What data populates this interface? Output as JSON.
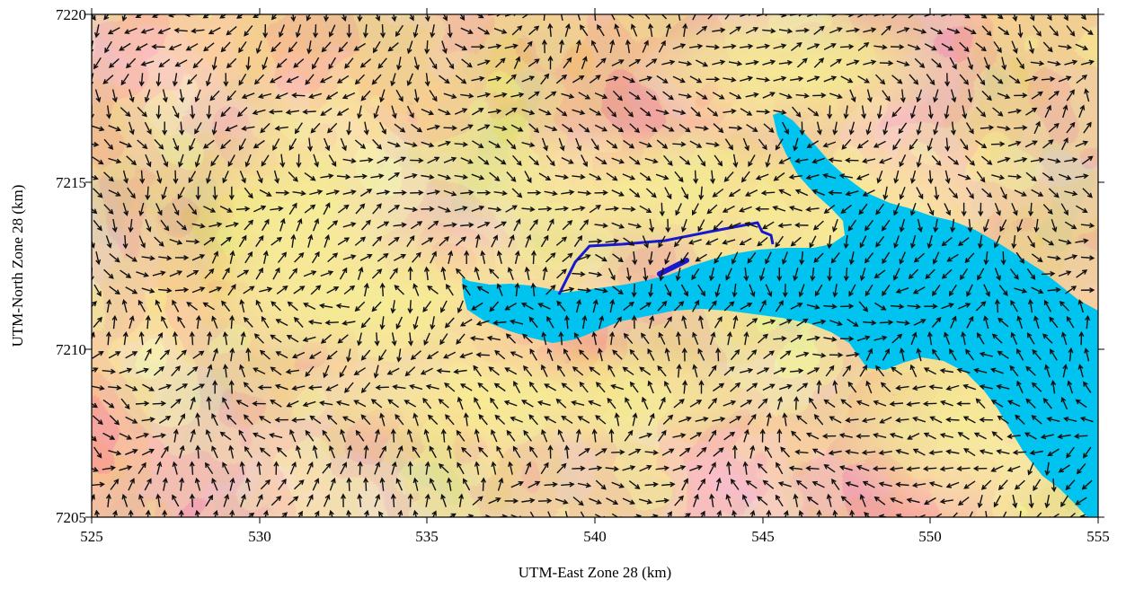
{
  "chart_data": {
    "type": "heatmap",
    "title": "",
    "xlabel": "UTM-East Zone 28 (km)",
    "ylabel": "UTM-North Zone 28 (km)",
    "xlim": [
      525,
      555
    ],
    "ylim": [
      7205,
      7220
    ],
    "x_ticks": [
      "525",
      "530",
      "535",
      "540",
      "545",
      "550",
      "555"
    ],
    "y_ticks": [
      "7205",
      "7210",
      "7215",
      "7220"
    ],
    "grid": false,
    "legend": "none",
    "overlay": "wind vector arrows",
    "colors": {
      "terrain_low": "#f7ec96",
      "terrain_mid": "#d9a468",
      "terrain_high": "#a8381e",
      "water": "#00c3ef",
      "track": "#1818d0",
      "arrow": "#111111"
    }
  }
}
